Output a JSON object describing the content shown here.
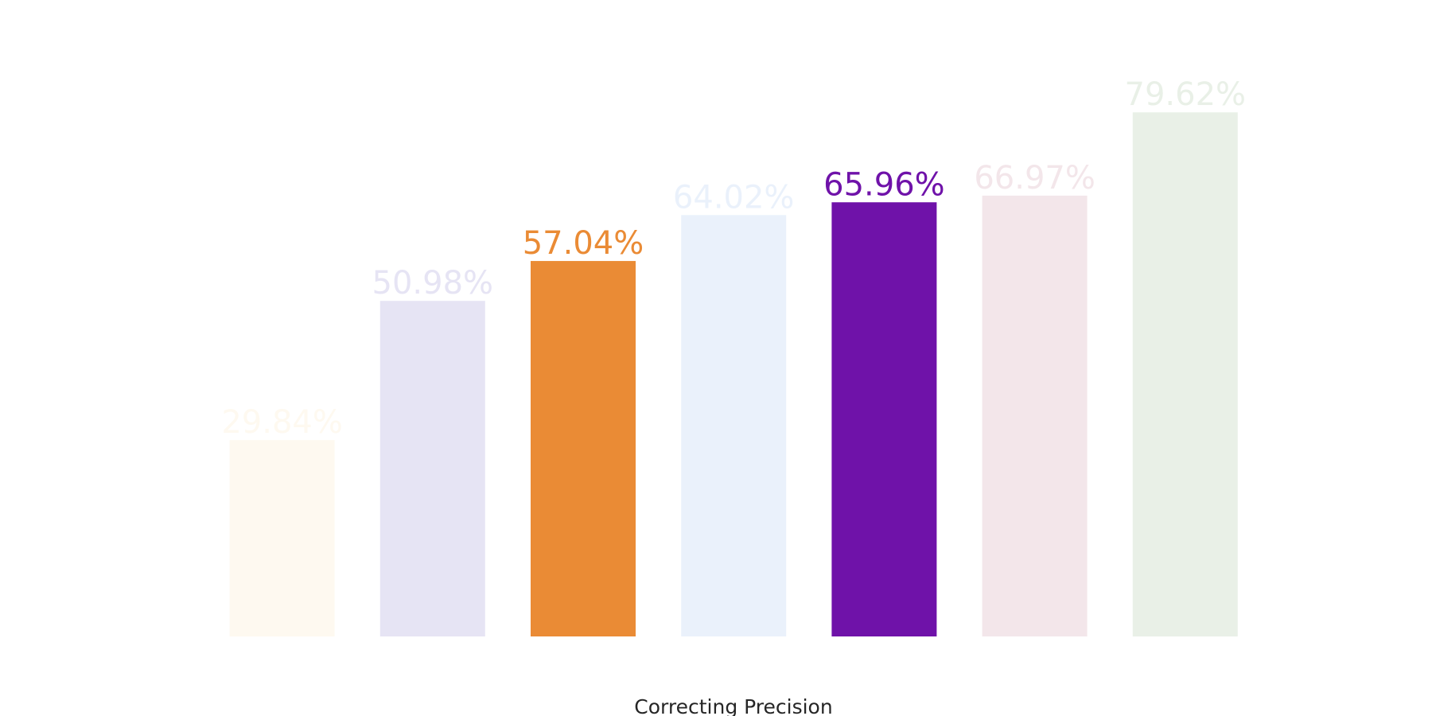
{
  "chart_data": {
    "type": "bar",
    "xlabel": "Correcting Precision",
    "values": [
      29.84,
      50.98,
      57.04,
      64.02,
      65.96,
      66.97,
      79.62
    ],
    "value_labels": [
      "29.84%",
      "50.98%",
      "57.04%",
      "64.02%",
      "65.96%",
      "66.97%",
      "79.62%"
    ],
    "colors": [
      "#fef9f0",
      "#e6e4f4",
      "#ea8b35",
      "#eaf1fb",
      "#6f12a9",
      "#f3e6ea",
      "#e9f0e7"
    ],
    "ylim": [
      0,
      84
    ]
  }
}
